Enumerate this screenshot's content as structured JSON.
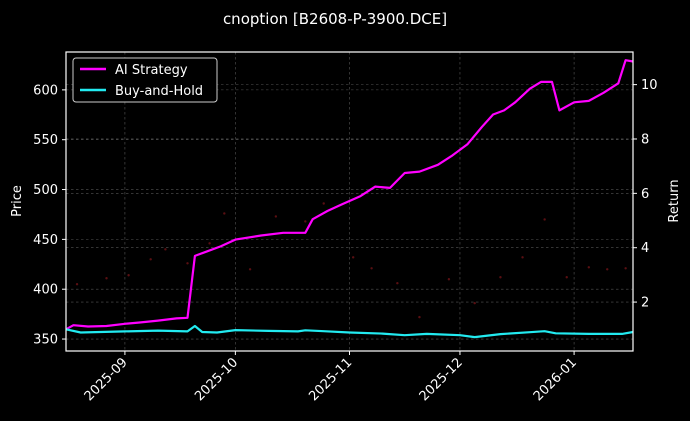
{
  "chart_data": {
    "type": "line",
    "title": "cnoption [B2608-P-3900.DCE]",
    "xlabel": "",
    "ylabel": "Price",
    "ylabel_right": "Return",
    "x_ticks": [
      "2025-09",
      "2025-10",
      "2025-11",
      "2025-12",
      "2026-01"
    ],
    "y_ticks_left": [
      350,
      400,
      450,
      500,
      550,
      600
    ],
    "y_ticks_right": [
      2,
      4,
      6,
      8,
      10
    ],
    "ylim_left": [
      338,
      638
    ],
    "ylim_right": [
      0.2,
      11.2
    ],
    "grid": true,
    "legend_position": "upper left",
    "legend": [
      "AI Strategy",
      "Buy-and-Hold"
    ],
    "x_range": [
      "2025-08-16",
      "2026-01-17"
    ],
    "series": [
      {
        "name": "AI Strategy",
        "axis": "right",
        "color": "#ff00ff",
        "points": [
          [
            "2025-08-16",
            1.0
          ],
          [
            "2025-08-18",
            1.15
          ],
          [
            "2025-08-22",
            1.1
          ],
          [
            "2025-08-27",
            1.12
          ],
          [
            "2025-09-01",
            1.2
          ],
          [
            "2025-09-05",
            1.25
          ],
          [
            "2025-09-10",
            1.32
          ],
          [
            "2025-09-15",
            1.4
          ],
          [
            "2025-09-18",
            1.42
          ],
          [
            "2025-09-20",
            3.7
          ],
          [
            "2025-09-23",
            3.85
          ],
          [
            "2025-09-27",
            4.05
          ],
          [
            "2025-10-01",
            4.3
          ],
          [
            "2025-10-08",
            4.45
          ],
          [
            "2025-10-14",
            4.55
          ],
          [
            "2025-10-20",
            4.55
          ],
          [
            "2025-10-22",
            5.05
          ],
          [
            "2025-10-26",
            5.35
          ],
          [
            "2025-10-30",
            5.6
          ],
          [
            "2025-11-04",
            5.9
          ],
          [
            "2025-11-08",
            6.25
          ],
          [
            "2025-11-12",
            6.2
          ],
          [
            "2025-11-16",
            6.75
          ],
          [
            "2025-11-20",
            6.8
          ],
          [
            "2025-11-25",
            7.05
          ],
          [
            "2025-11-29",
            7.4
          ],
          [
            "2025-12-03",
            7.8
          ],
          [
            "2025-12-07",
            8.45
          ],
          [
            "2025-12-10",
            8.9
          ],
          [
            "2025-12-13",
            9.05
          ],
          [
            "2025-12-16",
            9.35
          ],
          [
            "2025-12-20",
            9.85
          ],
          [
            "2025-12-23",
            10.1
          ],
          [
            "2025-12-26",
            10.1
          ],
          [
            "2025-12-28",
            9.05
          ],
          [
            "2026-01-01",
            9.35
          ],
          [
            "2026-01-05",
            9.4
          ],
          [
            "2026-01-09",
            9.7
          ],
          [
            "2026-01-13",
            10.05
          ],
          [
            "2026-01-15",
            10.9
          ],
          [
            "2026-01-17",
            10.85
          ]
        ]
      },
      {
        "name": "Buy-and-Hold",
        "axis": "right",
        "color": "#22eaf0",
        "points": [
          [
            "2025-08-16",
            1.0
          ],
          [
            "2025-08-20",
            0.88
          ],
          [
            "2025-09-01",
            0.92
          ],
          [
            "2025-09-10",
            0.95
          ],
          [
            "2025-09-18",
            0.92
          ],
          [
            "2025-09-20",
            1.12
          ],
          [
            "2025-09-22",
            0.9
          ],
          [
            "2025-09-26",
            0.88
          ],
          [
            "2025-10-01",
            0.97
          ],
          [
            "2025-10-10",
            0.94
          ],
          [
            "2025-10-18",
            0.92
          ],
          [
            "2025-10-20",
            0.96
          ],
          [
            "2025-10-25",
            0.93
          ],
          [
            "2025-11-01",
            0.88
          ],
          [
            "2025-11-10",
            0.84
          ],
          [
            "2025-11-16",
            0.78
          ],
          [
            "2025-11-22",
            0.83
          ],
          [
            "2025-12-01",
            0.78
          ],
          [
            "2025-12-05",
            0.71
          ],
          [
            "2025-12-12",
            0.82
          ],
          [
            "2025-12-20",
            0.89
          ],
          [
            "2025-12-24",
            0.93
          ],
          [
            "2025-12-27",
            0.85
          ],
          [
            "2026-01-05",
            0.83
          ],
          [
            "2026-01-14",
            0.83
          ],
          [
            "2026-01-17",
            0.9
          ]
        ]
      },
      {
        "name": "Price (scatter)",
        "axis": "left",
        "color": "#5a0f12",
        "points": [
          [
            "2025-08-19",
            405
          ],
          [
            "2025-08-27",
            411
          ],
          [
            "2025-09-02",
            414
          ],
          [
            "2025-09-08",
            430
          ],
          [
            "2025-09-12",
            440
          ],
          [
            "2025-09-18",
            426
          ],
          [
            "2025-09-24",
            446
          ],
          [
            "2025-09-28",
            476
          ],
          [
            "2025-10-05",
            420
          ],
          [
            "2025-10-12",
            473
          ],
          [
            "2025-10-20",
            468
          ],
          [
            "2025-10-25",
            486
          ],
          [
            "2025-11-02",
            432
          ],
          [
            "2025-11-07",
            421
          ],
          [
            "2025-11-14",
            406
          ],
          [
            "2025-11-20",
            372
          ],
          [
            "2025-11-28",
            410
          ],
          [
            "2025-12-05",
            386
          ],
          [
            "2025-12-12",
            412
          ],
          [
            "2025-12-18",
            432
          ],
          [
            "2025-12-24",
            470
          ],
          [
            "2025-12-30",
            412
          ],
          [
            "2026-01-05",
            422
          ],
          [
            "2026-01-10",
            420
          ],
          [
            "2026-01-15",
            421
          ]
        ]
      }
    ]
  }
}
